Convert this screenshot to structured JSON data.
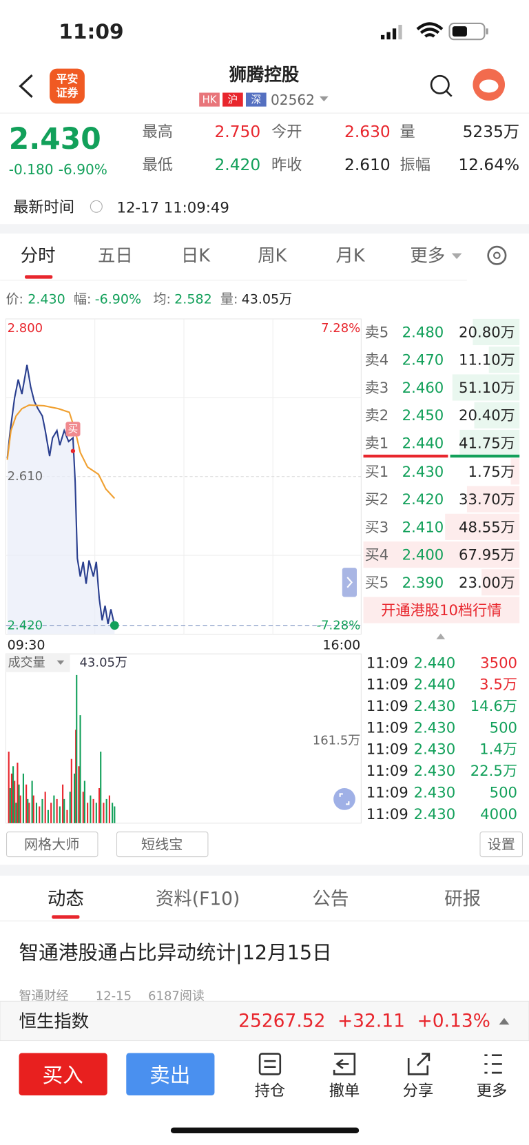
{
  "status": {
    "time": "11:09"
  },
  "header": {
    "logo": [
      "平安",
      "证券"
    ],
    "title": "狮腾控股",
    "tags": [
      "HK",
      "沪",
      "深"
    ],
    "code": "02562"
  },
  "quote": {
    "price": "2.430",
    "change": "-0.180",
    "change_pct": "-6.90%",
    "fields": [
      {
        "label": "最高",
        "value": "2.750"
      },
      {
        "label": "今开",
        "value": "2.630"
      },
      {
        "label": "量",
        "value": "5235万"
      },
      {
        "label": "最低",
        "value": "2.420"
      },
      {
        "label": "昨收",
        "value": "2.610"
      },
      {
        "label": "振幅",
        "value": "12.64%"
      }
    ],
    "time_label": "最新时间",
    "time": "12-17 11:09:49"
  },
  "chart_tabs": [
    "分时",
    "五日",
    "日K",
    "周K",
    "月K",
    "更多"
  ],
  "info": [
    {
      "label": "价:",
      "value": "2.430"
    },
    {
      "label": "幅:",
      "value": "-6.90%"
    },
    {
      "label": "均:",
      "value": "2.582"
    },
    {
      "label": "量:",
      "value": "43.05万"
    }
  ],
  "chart": {
    "y_top": "2.800",
    "y_mid": "2.610",
    "y_bottom": "2.420",
    "pct_top": "7.28%",
    "pct_bottom": "-7.28%",
    "x_start": "09:30",
    "x_end": "16:00",
    "buy_marker": "买",
    "volume_label": "成交量",
    "volume": "43.05万",
    "volume_max": "161.5万"
  },
  "order_book": [
    {
      "label": "卖5",
      "price": "2.480",
      "qty": "20.80万"
    },
    {
      "label": "卖4",
      "price": "2.470",
      "qty": "11.10万"
    },
    {
      "label": "卖3",
      "price": "2.460",
      "qty": "51.10万"
    },
    {
      "label": "卖2",
      "price": "2.450",
      "qty": "20.40万"
    },
    {
      "label": "卖1",
      "price": "2.440",
      "qty": "41.75万"
    },
    {
      "label": "买1",
      "price": "2.430",
      "qty": "1.75万"
    },
    {
      "label": "买2",
      "price": "2.420",
      "qty": "33.70万"
    },
    {
      "label": "买3",
      "price": "2.410",
      "qty": "48.55万"
    },
    {
      "label": "买4",
      "price": "2.400",
      "qty": "67.95万"
    },
    {
      "label": "买5",
      "price": "2.390",
      "qty": "23.00万"
    }
  ],
  "hk_depth": "开通港股10档行情",
  "trades": [
    {
      "time": "11:09",
      "price": "2.440",
      "qty": "3500"
    },
    {
      "time": "11:09",
      "price": "2.440",
      "qty": "3.5万"
    },
    {
      "time": "11:09",
      "price": "2.430",
      "qty": "14.6万"
    },
    {
      "time": "11:09",
      "price": "2.430",
      "qty": "500"
    },
    {
      "time": "11:09",
      "price": "2.430",
      "qty": "1.4万"
    },
    {
      "time": "11:09",
      "price": "2.430",
      "qty": "22.5万"
    },
    {
      "time": "11:09",
      "price": "2.430",
      "qty": "500"
    },
    {
      "time": "11:09",
      "price": "2.430",
      "qty": "4000"
    }
  ],
  "tools": [
    "网格大师",
    "短线宝",
    "设置"
  ],
  "news_tabs": [
    "动态",
    "资料(F10)",
    "公告",
    "研报"
  ],
  "news": {
    "title": "智通港股通占比异动统计|12月15日",
    "source": "智通财经",
    "date": "12-15",
    "reads": "6187阅读"
  },
  "index": {
    "name": "恒生指数",
    "value": "25267.52",
    "change": "+32.11",
    "pct": "+0.13%"
  },
  "actions": {
    "buy": "买入",
    "sell": "卖出",
    "items": [
      "持仓",
      "撤单",
      "分享",
      "更多"
    ]
  }
}
